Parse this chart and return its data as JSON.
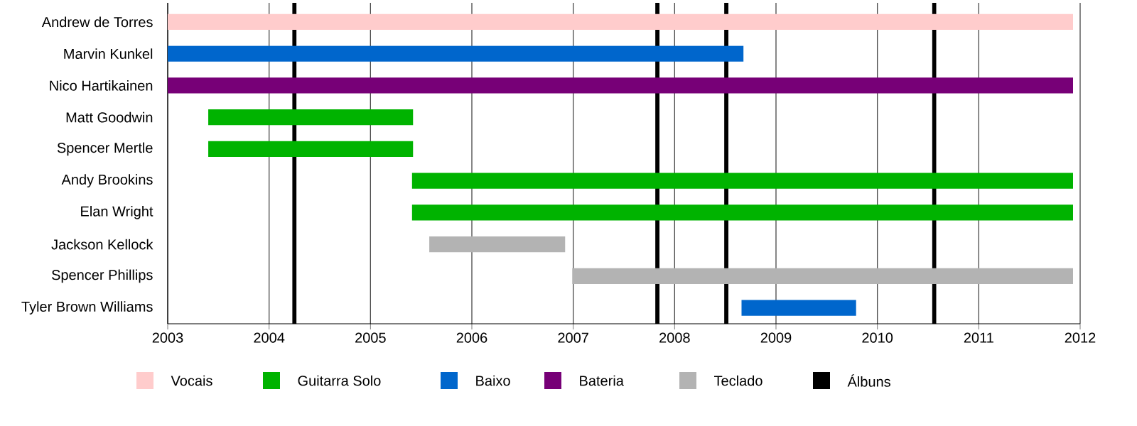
{
  "chart_data": {
    "type": "bar",
    "orientation": "horizontal",
    "categories": [
      "Andrew de Torres",
      "Marvin Kunkel",
      "Nico Hartikainen",
      "Matt Goodwin",
      "Spencer Mertle",
      "Andy Brookins",
      "Elan Wright",
      "Jackson Kellock",
      "Spencer Phillips",
      "Tyler Brown Williams"
    ],
    "series": [
      {
        "name": "Vocais",
        "color": "#ffcccc",
        "base": [
          2003,
          null,
          null,
          null,
          null,
          null,
          null,
          null,
          null,
          null
        ],
        "values": [
          8.93,
          null,
          null,
          null,
          null,
          null,
          null,
          null,
          null,
          null
        ]
      },
      {
        "name": "Guitarra Solo",
        "color": "#00b300",
        "base": [
          null,
          null,
          null,
          2003.4,
          2003.4,
          2005.41,
          2005.41,
          null,
          null,
          null
        ],
        "values": [
          null,
          null,
          null,
          2.02,
          2.02,
          6.52,
          6.52,
          null,
          null,
          null
        ]
      },
      {
        "name": "Baixo",
        "color": "#0066cc",
        "base": [
          null,
          2003,
          null,
          null,
          null,
          null,
          null,
          null,
          null,
          2008.66
        ],
        "values": [
          null,
          5.68,
          null,
          null,
          null,
          null,
          null,
          null,
          null,
          1.13
        ]
      },
      {
        "name": "Bateria",
        "color": "#770077",
        "base": [
          null,
          null,
          2003,
          null,
          null,
          null,
          null,
          null,
          null,
          null
        ],
        "values": [
          null,
          null,
          8.93,
          null,
          null,
          null,
          null,
          null,
          null,
          null
        ]
      },
      {
        "name": "Teclado",
        "color": "#b3b3b3",
        "base": [
          null,
          null,
          null,
          null,
          null,
          null,
          null,
          2005.58,
          2006.99,
          null
        ],
        "values": [
          null,
          null,
          null,
          null,
          null,
          null,
          null,
          1.34,
          4.94,
          null
        ]
      }
    ],
    "xlim": [
      2003,
      2012
    ],
    "xticks": [
      2003,
      2004,
      2005,
      2006,
      2007,
      2008,
      2009,
      2010,
      2011,
      2012
    ],
    "grid": "x",
    "legend": "bottom",
    "ref_lines": [
      {
        "axis": "x",
        "value": 2004.25,
        "label": "Álbuns",
        "color": "#000000"
      },
      {
        "axis": "x",
        "value": 2007.83,
        "color": "#000000"
      },
      {
        "axis": "x",
        "value": 2008.51,
        "color": "#000000"
      },
      {
        "axis": "x",
        "value": 2010.56,
        "color": "#000000"
      }
    ]
  }
}
